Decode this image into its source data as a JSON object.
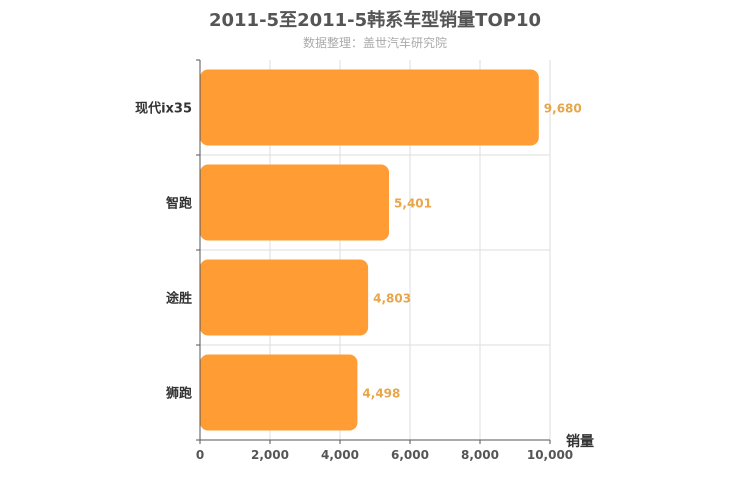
{
  "chart_data": {
    "type": "bar",
    "orientation": "horizontal",
    "title": "2011-5至2011-5韩系车型销量TOP10",
    "subtitle": "数据整理：盖世汽车研究院",
    "categories": [
      "现代ix35",
      "智跑",
      "途胜",
      "狮跑"
    ],
    "values": [
      9680,
      5401,
      4803,
      4498
    ],
    "value_labels": [
      "9,680",
      "5,401",
      "4,803",
      "4,498"
    ],
    "xlabel": "销量",
    "ylabel": "",
    "xlim": [
      0,
      10000
    ],
    "x_ticks": [
      "0",
      "2,000",
      "4,000",
      "6,000",
      "8,000",
      "10,000"
    ],
    "grid": true,
    "colors": {
      "bar": "#ff9c33",
      "data_label": "#e8a64a"
    }
  }
}
